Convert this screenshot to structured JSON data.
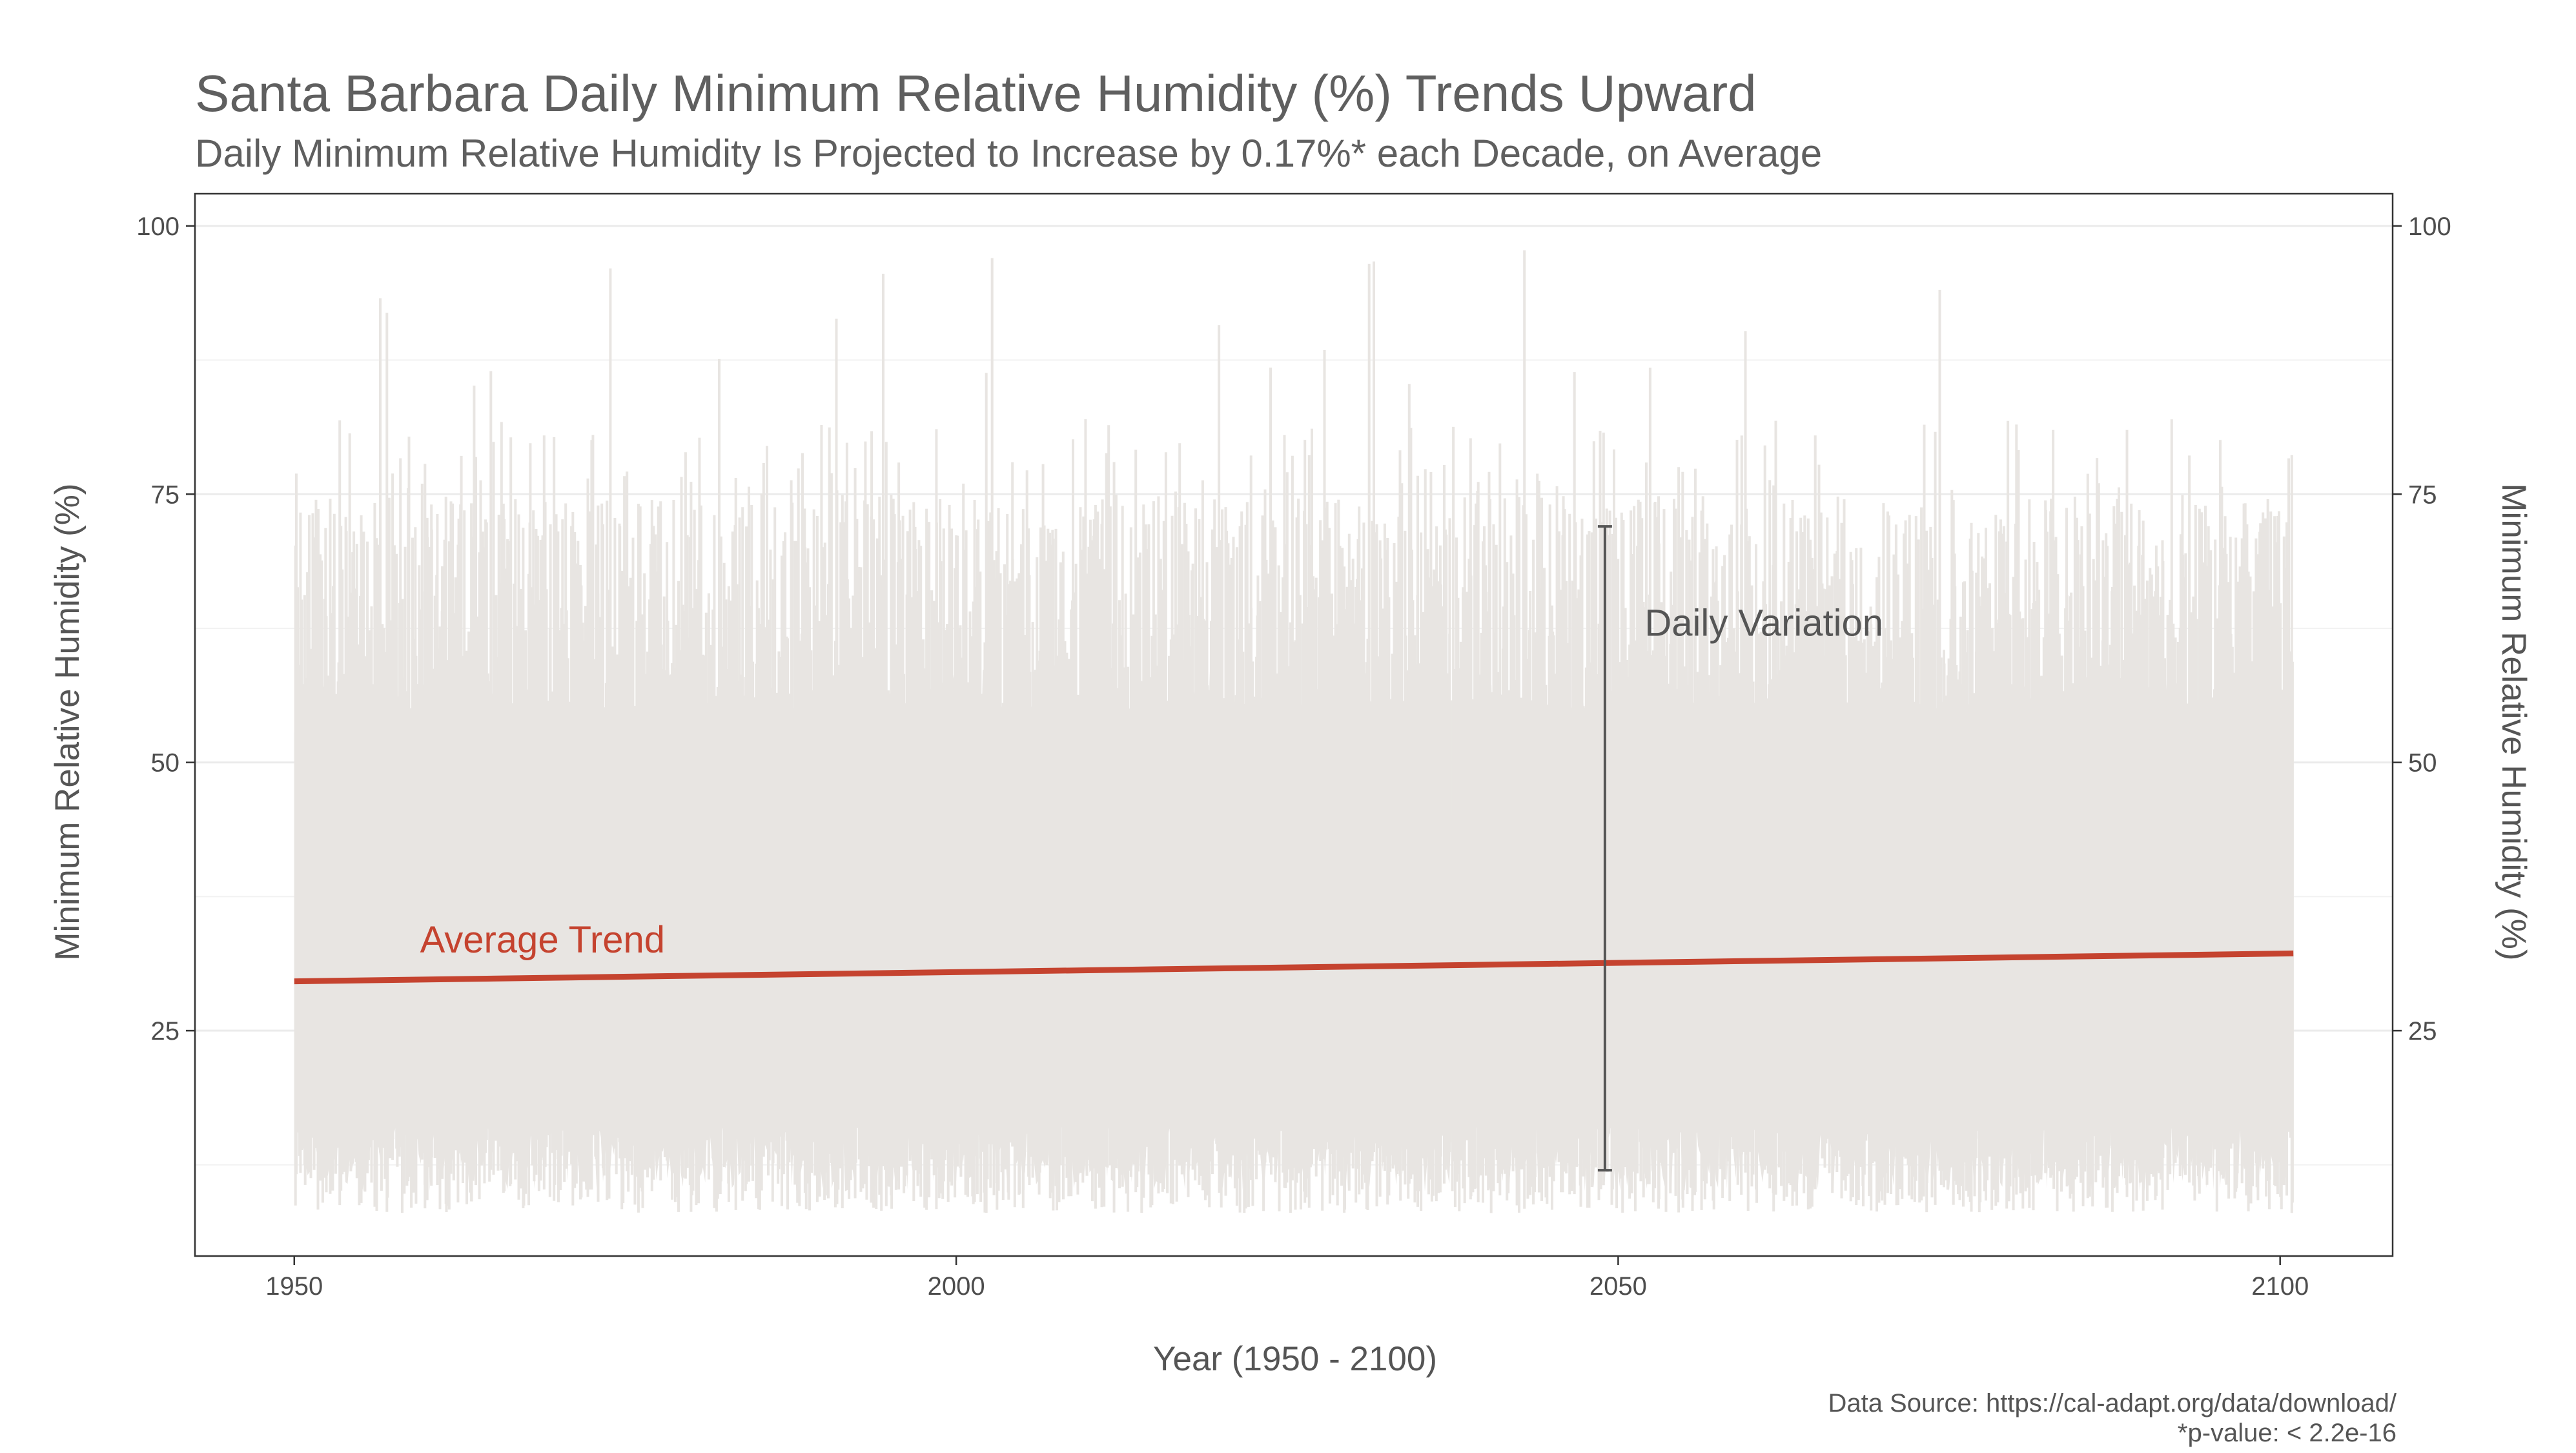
{
  "chart_data": {
    "type": "line",
    "title": "Santa Barbara Daily Minimum Relative Humidity (%) Trends Upward",
    "subtitle": "Daily Minimum Relative Humidity Is Projected to Increase by 0.17%* each Decade, on Average",
    "xlabel": "Year (1950 - 2100)",
    "ylabel": "Minimum Relative Humidity (%)",
    "ylabel_right": "Minimum Relative Humidity (%)",
    "xlim": [
      1942.5,
      2108.5
    ],
    "ylim": [
      4,
      103
    ],
    "x_ticks": [
      1950,
      2000,
      2050,
      2100
    ],
    "y_ticks": [
      25,
      50,
      75,
      100
    ],
    "grid": true,
    "legend": "none",
    "series": [
      {
        "values_note_hidden": false,
        "x_range": [
          1950,
          2101
        ],
        "color": "#e8e5e2",
        "y_typical_low": 14,
        "y_typical_high": 50,
        "y_extreme_low": 8,
        "y_extreme_high": 98
      },
      {
        "x": [
          1950,
          2101
        ],
        "y": [
          29.6,
          32.2
        ],
        "color": "#c5432f"
      }
    ],
    "annotations": {
      "trend_label": "Average Trend",
      "trend_label_x": 1959.5,
      "trend_label_y": 33.5,
      "variation_label": "Daily Variation",
      "variation_label_x": 2052,
      "variation_label_y": 63,
      "variation_bar_x": 2049,
      "variation_bar_low": 12,
      "variation_bar_high": 72
    },
    "caption": [
      "Data Source: https://cal-adapt.org/data/download/",
      "*p-value: < 2.2e-16"
    ],
    "colors": {
      "trend": "#c5432f",
      "daily": "#e8e5e2",
      "text": "#5f5f5f"
    }
  }
}
